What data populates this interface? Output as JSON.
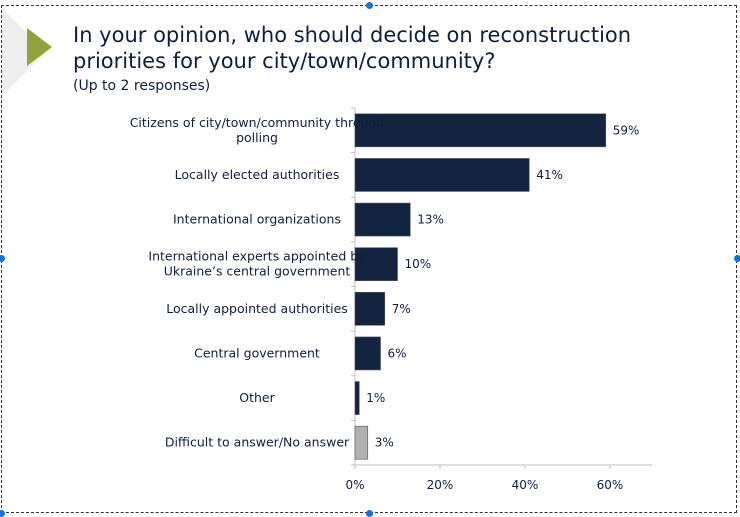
{
  "chart_data": {
    "type": "bar",
    "orientation": "horizontal",
    "title": "In your opinion, who should decide on reconstruction priorities for your city/town/community?",
    "subtitle": "(Up to 2 responses)",
    "categories": [
      "Citizens of city/town/community through polling",
      "Locally elected authorities",
      "International organizations",
      "International experts appointed by Ukraine’s central government",
      "Locally appointed authorities",
      "Central government",
      "Other",
      "Difficult to answer/No answer"
    ],
    "category_lines": [
      [
        "Citizens of city/town/community through",
        "polling"
      ],
      [
        "Locally elected authorities"
      ],
      [
        "International organizations"
      ],
      [
        "International experts appointed by",
        "Ukraine’s central government"
      ],
      [
        "Locally appointed authorities"
      ],
      [
        "Central government"
      ],
      [
        "Other"
      ],
      [
        "Difficult to answer/No answer"
      ]
    ],
    "values": [
      59,
      41,
      13,
      10,
      7,
      6,
      1,
      3
    ],
    "data_labels": [
      "59%",
      "41%",
      "13%",
      "10%",
      "7%",
      "6%",
      "1%",
      "3%"
    ],
    "bar_colors": [
      "#12243f",
      "#12243f",
      "#12243f",
      "#12243f",
      "#12243f",
      "#12243f",
      "#12243f",
      "#b0b0b0"
    ],
    "xlim": [
      0,
      70
    ],
    "xticks": [
      0,
      20,
      40,
      60
    ],
    "xtick_labels": [
      "0%",
      "20%",
      "40%",
      "60%"
    ],
    "xlabel": "",
    "ylabel": "",
    "grid": false,
    "legend": "none"
  },
  "colors": {
    "accent": "#8fa33a",
    "text": "#0f1e3c",
    "bar": "#12243f",
    "bar_other": "#b0b0b0"
  }
}
